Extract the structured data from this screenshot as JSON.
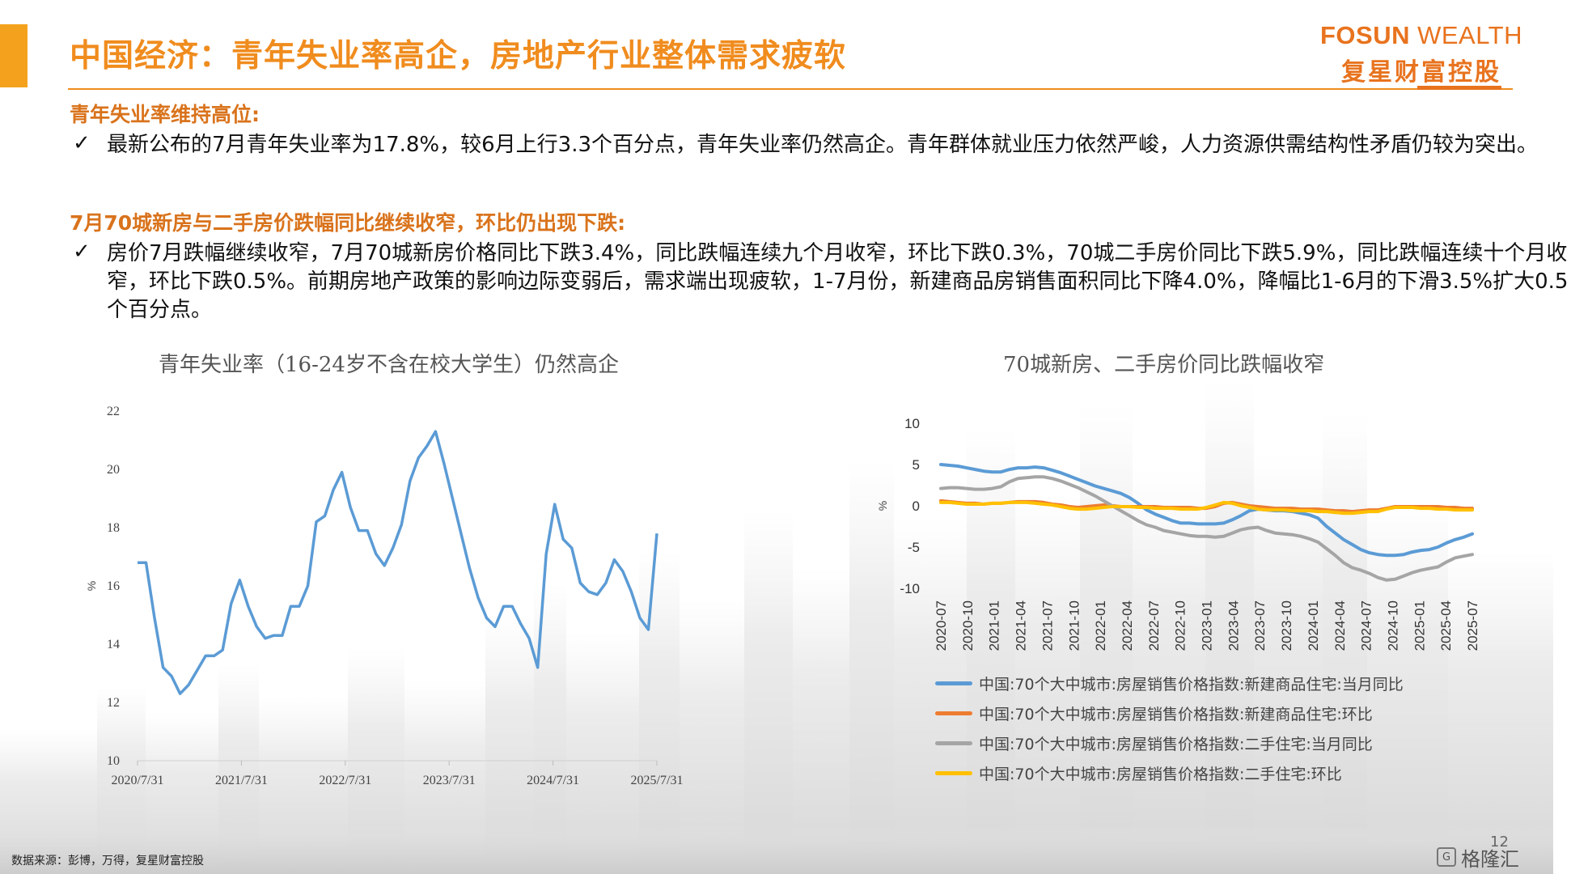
{
  "header": {
    "title": "中国经济：青年失业率高企，房地产行业整体需求疲软",
    "logo_en_bold": "FOSUN",
    "logo_en_light": " WEALTH",
    "logo_cn": "复星财富控股"
  },
  "sections": [
    {
      "heading": "青年失业率维持高位:",
      "bullet": "最新公布的7月青年失业率为17.8%，较6月上行3.3个百分点，青年失业率仍然高企。青年群体就业压力依然严峻，人力资源供需结构性矛盾仍较为突出。"
    },
    {
      "heading": "7月70城新房与二手房价跌幅同比继续收窄，环比仍出现下跌:",
      "bullet": "房价7月跌幅继续收窄，7月70城新房价格同比下跌3.4%，同比跌幅连续九个月收窄，环比下跌0.3%，70城二手房价同比下跌5.9%，同比跌幅连续十个月收窄，环比下跌0.5%。前期房地产政策的影响边际变弱后，需求端出现疲软，1-7月份，新建商品房销售面积同比下降4.0%，降幅比1-6月的下滑3.5%扩大0.5个百分点。"
    }
  ],
  "check_symbol": "✓",
  "chart_data": [
    {
      "type": "line",
      "title": "青年失业率（16-24岁不含在校大学生）仍然高企",
      "ylabel": "%",
      "ylim": [
        10,
        22
      ],
      "yticks": [
        10,
        12,
        14,
        16,
        18,
        20,
        22
      ],
      "xticks": [
        "2020/7/31",
        "2021/7/31",
        "2022/7/31",
        "2023/7/31",
        "2024/7/31",
        "2025/7/31"
      ],
      "grid": false,
      "color": "#5b9bd5",
      "series": [
        {
          "values": [
            16.8,
            16.8,
            14.9,
            13.2,
            12.9,
            12.3,
            12.6,
            13.1,
            13.6,
            13.6,
            13.8,
            15.4,
            16.2,
            15.3,
            14.6,
            14.2,
            14.3,
            14.3,
            15.3,
            15.3,
            16.0,
            18.2,
            18.4,
            19.3,
            19.9,
            18.7,
            17.9,
            17.9,
            17.1,
            16.7,
            17.3,
            18.1,
            19.6,
            20.4,
            20.8,
            21.3,
            20.2,
            19.0,
            17.8,
            16.6,
            15.6,
            14.9,
            14.6,
            15.3,
            15.3,
            14.7,
            14.2,
            13.2,
            17.1,
            18.8,
            17.6,
            17.3,
            16.1,
            15.8,
            15.7,
            16.1,
            16.9,
            16.5,
            15.8,
            14.9,
            14.5,
            17.8
          ]
        }
      ]
    },
    {
      "type": "line",
      "title": "70城新房、二手房价同比跌幅收窄",
      "ylabel": "%",
      "ylim": [
        -10,
        10
      ],
      "yticks": [
        10,
        5,
        0,
        -5,
        -10
      ],
      "xticks": [
        "2020-07",
        "2020-10",
        "2021-01",
        "2021-04",
        "2021-07",
        "2021-10",
        "2022-01",
        "2022-04",
        "2022-07",
        "2022-10",
        "2023-01",
        "2023-04",
        "2023-07",
        "2023-10",
        "2024-01",
        "2024-04",
        "2024-07",
        "2024-10",
        "2025-01",
        "2025-04",
        "2025-07"
      ],
      "grid": false,
      "legend_position": "bottom",
      "series": [
        {
          "name": "中国:70个大中城市:房屋销售价格指数:新建商品住宅:当月同比",
          "color": "#5b9bd5",
          "values": [
            5.0,
            4.9,
            4.8,
            4.6,
            4.4,
            4.2,
            4.1,
            4.1,
            4.4,
            4.6,
            4.6,
            4.7,
            4.6,
            4.3,
            4.0,
            3.6,
            3.2,
            2.8,
            2.4,
            2.1,
            1.8,
            1.5,
            1.0,
            0.3,
            -0.5,
            -1.0,
            -1.4,
            -1.8,
            -2.1,
            -2.1,
            -2.2,
            -2.2,
            -2.2,
            -2.1,
            -1.7,
            -1.2,
            -0.6,
            -0.4,
            -0.5,
            -0.6,
            -0.6,
            -0.7,
            -0.9,
            -1.1,
            -1.5,
            -2.5,
            -3.3,
            -4.1,
            -4.7,
            -5.3,
            -5.7,
            -5.9,
            -6.0,
            -6.0,
            -5.9,
            -5.6,
            -5.4,
            -5.3,
            -5.0,
            -4.5,
            -4.1,
            -3.8,
            -3.4
          ]
        },
        {
          "name": "中国:70个大中城市:房屋销售价格指数:新建商品住宅:环比",
          "color": "#ed7d31",
          "values": [
            0.6,
            0.5,
            0.4,
            0.3,
            0.3,
            0.2,
            0.3,
            0.3,
            0.4,
            0.5,
            0.5,
            0.5,
            0.4,
            0.2,
            0.1,
            -0.1,
            -0.2,
            -0.1,
            0.0,
            0.1,
            0.0,
            -0.1,
            -0.1,
            -0.1,
            -0.1,
            -0.1,
            -0.2,
            -0.2,
            -0.2,
            -0.2,
            -0.3,
            -0.3,
            -0.1,
            0.3,
            0.4,
            0.2,
            0.0,
            -0.1,
            -0.2,
            -0.3,
            -0.3,
            -0.3,
            -0.4,
            -0.4,
            -0.4,
            -0.5,
            -0.6,
            -0.6,
            -0.7,
            -0.6,
            -0.5,
            -0.5,
            -0.3,
            -0.1,
            -0.1,
            -0.1,
            -0.1,
            -0.1,
            -0.1,
            -0.2,
            -0.2,
            -0.3,
            -0.3
          ]
        },
        {
          "name": "中国:70个大中城市:房屋销售价格指数:二手住宅:当月同比",
          "color": "#a5a5a5",
          "values": [
            2.1,
            2.2,
            2.2,
            2.1,
            2.0,
            2.0,
            2.1,
            2.3,
            2.9,
            3.3,
            3.4,
            3.5,
            3.5,
            3.3,
            3.0,
            2.6,
            2.2,
            1.7,
            1.2,
            0.6,
            0.0,
            -0.6,
            -1.2,
            -1.8,
            -2.3,
            -2.6,
            -3.0,
            -3.2,
            -3.4,
            -3.6,
            -3.7,
            -3.7,
            -3.8,
            -3.7,
            -3.3,
            -2.9,
            -2.7,
            -2.6,
            -3.0,
            -3.3,
            -3.4,
            -3.5,
            -3.7,
            -4.0,
            -4.4,
            -5.2,
            -6.0,
            -6.9,
            -7.5,
            -7.8,
            -8.2,
            -8.7,
            -9.0,
            -8.9,
            -8.5,
            -8.1,
            -7.8,
            -7.6,
            -7.4,
            -6.8,
            -6.3,
            -6.1,
            -5.9
          ]
        },
        {
          "name": "中国:70个大中城市:房屋销售价格指数:二手住宅:环比",
          "color": "#ffc000",
          "values": [
            0.4,
            0.4,
            0.3,
            0.2,
            0.2,
            0.2,
            0.3,
            0.3,
            0.4,
            0.4,
            0.4,
            0.3,
            0.2,
            0.1,
            -0.1,
            -0.3,
            -0.4,
            -0.4,
            -0.3,
            -0.2,
            -0.1,
            -0.1,
            -0.1,
            -0.2,
            -0.2,
            -0.3,
            -0.3,
            -0.3,
            -0.4,
            -0.4,
            -0.4,
            -0.2,
            0.1,
            0.4,
            0.3,
            0.0,
            -0.2,
            -0.4,
            -0.5,
            -0.5,
            -0.5,
            -0.6,
            -0.6,
            -0.6,
            -0.7,
            -0.7,
            -0.8,
            -0.9,
            -0.9,
            -0.8,
            -0.7,
            -0.7,
            -0.4,
            -0.2,
            -0.2,
            -0.2,
            -0.3,
            -0.3,
            -0.4,
            -0.4,
            -0.5,
            -0.5,
            -0.5
          ]
        }
      ]
    }
  ],
  "source": "数据来源：彭博，万得，复星财富控股",
  "page_number": "12",
  "watermark": "格隆汇",
  "watermark_icon": "G"
}
